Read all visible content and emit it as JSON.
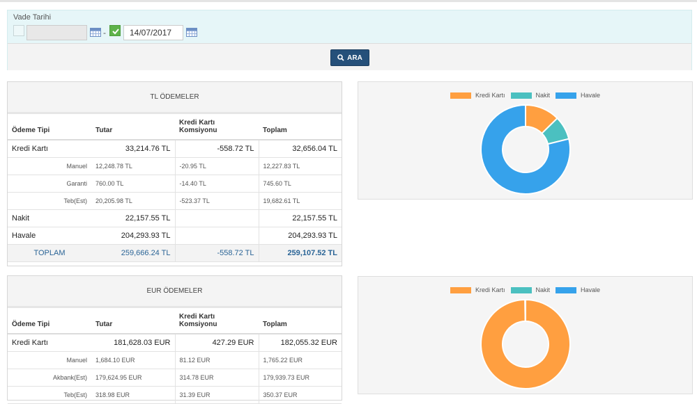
{
  "filter": {
    "label": "Vade Tarihi",
    "date_from": "",
    "date_to": "14/07/2017",
    "separator": "-",
    "search_button": "ARA"
  },
  "tl_table": {
    "title": "TL ÖDEMELER",
    "headers": [
      "Ödeme Tipi",
      "Tutar",
      "Kredi Kartı\nKomsiyonu",
      "Toplam"
    ],
    "rows": [
      {
        "type": "main",
        "name": "Kredi Kartı",
        "tutar": "33,214.76 TL",
        "komisyon": "-558.72 TL",
        "toplam": "32,656.04 TL"
      },
      {
        "type": "sub",
        "name": "Manuel",
        "tutar": "12,248.78 TL",
        "komisyon": "-20.95 TL",
        "toplam": "12,227.83 TL"
      },
      {
        "type": "sub",
        "name": "Garanti",
        "tutar": "760.00 TL",
        "komisyon": "-14.40 TL",
        "toplam": "745.60 TL"
      },
      {
        "type": "sub",
        "name": "Teb(Est)",
        "tutar": "20,205.98 TL",
        "komisyon": "-523.37 TL",
        "toplam": "19,682.61 TL"
      },
      {
        "type": "main",
        "name": "Nakit",
        "tutar": "22,157.55 TL",
        "komisyon": "",
        "toplam": "22,157.55 TL"
      },
      {
        "type": "main",
        "name": "Havale",
        "tutar": "204,293.93 TL",
        "komisyon": "",
        "toplam": "204,293.93 TL"
      }
    ],
    "total": {
      "name": "TOPLAM",
      "tutar": "259,666.24 TL",
      "komisyon": "-558.72 TL",
      "toplam": "259,107.52 TL"
    }
  },
  "eur_table": {
    "title": "EUR ÖDEMELER",
    "headers": [
      "Ödeme Tipi",
      "Tutar",
      "Kredi Kartı\nKomsiyonu",
      "Toplam"
    ],
    "rows": [
      {
        "type": "main",
        "name": "Kredi Kartı",
        "tutar": "181,628.03 EUR",
        "komisyon": "427.29 EUR",
        "toplam": "182,055.32 EUR"
      },
      {
        "type": "sub",
        "name": "Manuel",
        "tutar": "1,684.10 EUR",
        "komisyon": "81.12 EUR",
        "toplam": "1,765.22 EUR"
      },
      {
        "type": "sub",
        "name": "Akbank(Est)",
        "tutar": "179,624.95 EUR",
        "komisyon": "314.78 EUR",
        "toplam": "179,939.73 EUR"
      },
      {
        "type": "sub",
        "name": "Teb(Est)",
        "tutar": "318.98 EUR",
        "komisyon": "31.39 EUR",
        "toplam": "350.37 EUR"
      }
    ]
  },
  "colors": {
    "kredi": "#ff9f40",
    "nakit": "#4bc0c0",
    "havale": "#36a2eb",
    "accent": "#25507a",
    "check": "#5db34a"
  },
  "chart_data": [
    {
      "type": "pie",
      "categories": [
        "Kredi Kartı",
        "Nakit",
        "Havale"
      ],
      "values": [
        32656.04,
        22157.55,
        204293.93
      ],
      "legend": "top"
    },
    {
      "type": "pie",
      "categories": [
        "Kredi Kartı",
        "Nakit",
        "Havale"
      ],
      "values": [
        182055.32,
        0,
        350.37
      ],
      "legend": "top"
    }
  ]
}
